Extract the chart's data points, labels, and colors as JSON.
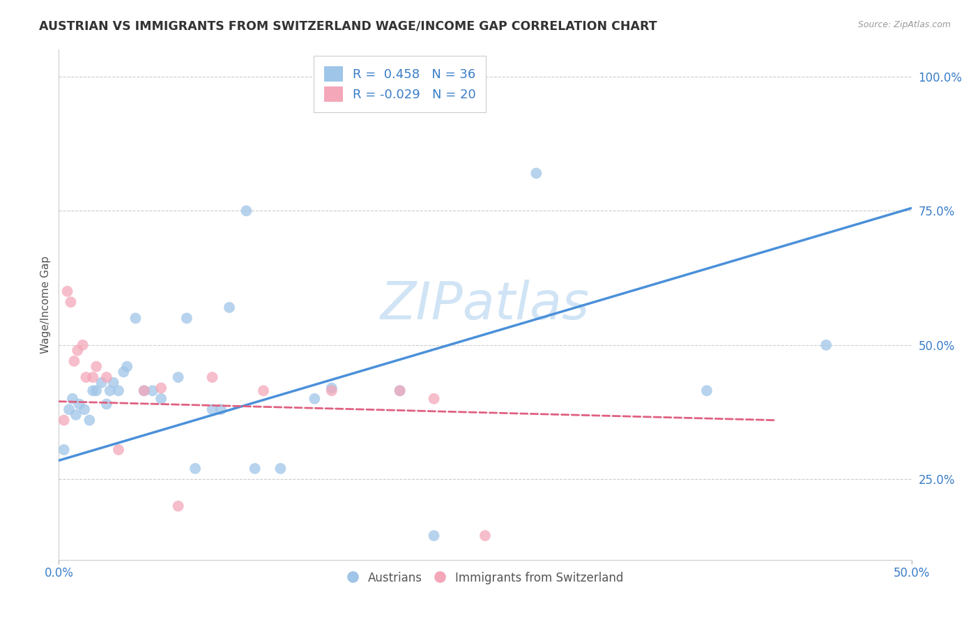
{
  "title": "AUSTRIAN VS IMMIGRANTS FROM SWITZERLAND WAGE/INCOME GAP CORRELATION CHART",
  "source": "Source: ZipAtlas.com",
  "ylabel": "Wage/Income Gap",
  "xlim": [
    0.0,
    0.5
  ],
  "ylim": [
    0.1,
    1.05
  ],
  "blue_R": 0.458,
  "blue_N": 36,
  "pink_R": -0.029,
  "pink_N": 20,
  "blue_scatter_x": [
    0.003,
    0.006,
    0.008,
    0.01,
    0.012,
    0.015,
    0.018,
    0.02,
    0.022,
    0.025,
    0.028,
    0.03,
    0.032,
    0.035,
    0.038,
    0.04,
    0.045,
    0.05,
    0.055,
    0.06,
    0.07,
    0.075,
    0.08,
    0.09,
    0.095,
    0.1,
    0.11,
    0.115,
    0.13,
    0.15,
    0.16,
    0.2,
    0.22,
    0.28,
    0.38,
    0.45
  ],
  "blue_scatter_y": [
    0.305,
    0.38,
    0.4,
    0.37,
    0.39,
    0.38,
    0.36,
    0.415,
    0.415,
    0.43,
    0.39,
    0.415,
    0.43,
    0.415,
    0.45,
    0.46,
    0.55,
    0.415,
    0.415,
    0.4,
    0.44,
    0.55,
    0.27,
    0.38,
    0.38,
    0.57,
    0.75,
    0.27,
    0.27,
    0.4,
    0.42,
    0.415,
    0.145,
    0.82,
    0.415,
    0.5
  ],
  "pink_scatter_x": [
    0.003,
    0.005,
    0.007,
    0.009,
    0.011,
    0.014,
    0.016,
    0.02,
    0.022,
    0.028,
    0.035,
    0.05,
    0.06,
    0.07,
    0.09,
    0.12,
    0.16,
    0.2,
    0.22,
    0.25
  ],
  "pink_scatter_y": [
    0.36,
    0.6,
    0.58,
    0.47,
    0.49,
    0.5,
    0.44,
    0.44,
    0.46,
    0.44,
    0.305,
    0.415,
    0.42,
    0.2,
    0.44,
    0.415,
    0.415,
    0.415,
    0.4,
    0.145
  ],
  "blue_line_x": [
    0.0,
    0.5
  ],
  "blue_line_y": [
    0.285,
    0.755
  ],
  "pink_line_x": [
    0.0,
    0.42
  ],
  "pink_line_y": [
    0.395,
    0.36
  ],
  "background_color": "#ffffff",
  "blue_color": "#9fc5e8",
  "pink_color": "#f4a7b9",
  "blue_line_color": "#4a90d9",
  "pink_line_color": "#e06080",
  "watermark": "ZIPatlas",
  "watermark_color": "#d0e4f5",
  "grid_color": "#cccccc",
  "ytick_positions": [
    0.25,
    0.5,
    0.75,
    1.0
  ],
  "ytick_labels": [
    "25.0%",
    "50.0%",
    "75.0%",
    "100.0%"
  ],
  "xtick_positions": [
    0.0,
    0.5
  ],
  "xtick_labels": [
    "0.0%",
    "50.0%"
  ]
}
